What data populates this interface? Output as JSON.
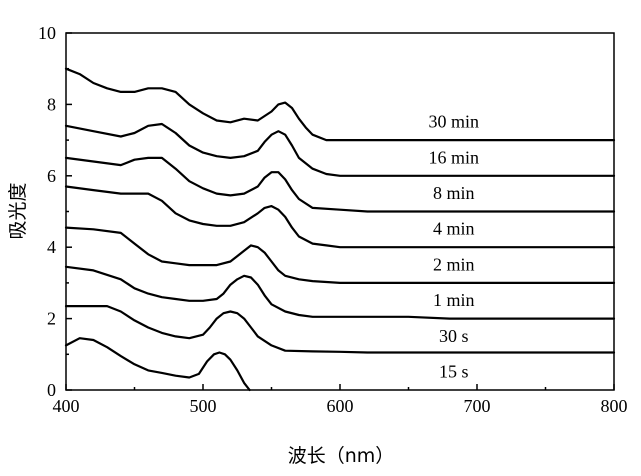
{
  "chart_data": {
    "type": "line",
    "xlabel": "波长（nm）",
    "ylabel": "吸光度",
    "xlim": [
      400,
      800
    ],
    "ylim": [
      0,
      10
    ],
    "x_ticks": [
      400,
      500,
      600,
      700,
      800
    ],
    "y_ticks": [
      0,
      2,
      4,
      6,
      8,
      10
    ],
    "grid": false,
    "series": [
      {
        "name": "15 s",
        "x": [
          400,
          410,
          420,
          430,
          440,
          450,
          460,
          470,
          480,
          490,
          497,
          503,
          508,
          512,
          516,
          520,
          525,
          530,
          534
        ],
        "y": [
          1.25,
          1.45,
          1.4,
          1.2,
          0.95,
          0.72,
          0.55,
          0.48,
          0.4,
          0.35,
          0.45,
          0.8,
          1.0,
          1.05,
          1.0,
          0.85,
          0.55,
          0.2,
          0.0
        ]
      },
      {
        "name": "30 s",
        "x": [
          400,
          430,
          440,
          450,
          460,
          470,
          480,
          490,
          500,
          505,
          510,
          515,
          520,
          525,
          530,
          535,
          540,
          550,
          560,
          580,
          600,
          620,
          680,
          800
        ],
        "y": [
          2.35,
          2.35,
          2.2,
          1.95,
          1.75,
          1.6,
          1.5,
          1.45,
          1.55,
          1.75,
          2.0,
          2.15,
          2.2,
          2.15,
          2.0,
          1.75,
          1.5,
          1.25,
          1.1,
          1.08,
          1.07,
          1.05,
          1.05,
          1.05
        ]
      },
      {
        "name": "1 min",
        "x": [
          400,
          420,
          440,
          450,
          460,
          470,
          480,
          490,
          500,
          510,
          515,
          520,
          525,
          530,
          535,
          540,
          545,
          550,
          560,
          570,
          580,
          600,
          650,
          680,
          800
        ],
        "y": [
          3.45,
          3.35,
          3.1,
          2.85,
          2.7,
          2.6,
          2.55,
          2.5,
          2.5,
          2.55,
          2.7,
          2.95,
          3.1,
          3.2,
          3.15,
          2.95,
          2.65,
          2.4,
          2.2,
          2.1,
          2.05,
          2.05,
          2.05,
          2.0,
          2.0
        ]
      },
      {
        "name": "2 min",
        "x": [
          400,
          420,
          440,
          450,
          460,
          470,
          480,
          490,
          500,
          510,
          520,
          525,
          530,
          535,
          540,
          545,
          550,
          555,
          560,
          570,
          580,
          600,
          620,
          800
        ],
        "y": [
          4.55,
          4.5,
          4.4,
          4.1,
          3.8,
          3.6,
          3.55,
          3.5,
          3.5,
          3.5,
          3.6,
          3.75,
          3.9,
          4.05,
          4.0,
          3.85,
          3.6,
          3.35,
          3.2,
          3.1,
          3.05,
          3.0,
          3.0,
          3.0
        ]
      },
      {
        "name": "4 min",
        "x": [
          400,
          420,
          440,
          450,
          460,
          470,
          480,
          490,
          500,
          510,
          520,
          530,
          540,
          545,
          550,
          555,
          560,
          565,
          570,
          580,
          590,
          600,
          700,
          800
        ],
        "y": [
          5.7,
          5.6,
          5.5,
          5.5,
          5.5,
          5.3,
          4.95,
          4.75,
          4.65,
          4.6,
          4.6,
          4.7,
          4.95,
          5.1,
          5.15,
          5.05,
          4.85,
          4.55,
          4.3,
          4.1,
          4.05,
          4.0,
          4.0,
          4.0
        ]
      },
      {
        "name": "8 min",
        "x": [
          400,
          420,
          440,
          450,
          460,
          470,
          480,
          490,
          500,
          510,
          520,
          530,
          540,
          545,
          550,
          555,
          560,
          565,
          570,
          580,
          600,
          620,
          800
        ],
        "y": [
          6.5,
          6.4,
          6.3,
          6.45,
          6.5,
          6.5,
          6.2,
          5.85,
          5.65,
          5.5,
          5.45,
          5.5,
          5.7,
          5.95,
          6.1,
          6.1,
          5.9,
          5.6,
          5.35,
          5.1,
          5.05,
          5.0,
          5.0
        ]
      },
      {
        "name": "16 min",
        "x": [
          400,
          420,
          440,
          450,
          460,
          470,
          480,
          490,
          500,
          510,
          520,
          530,
          540,
          545,
          550,
          555,
          560,
          565,
          570,
          580,
          590,
          600,
          800
        ],
        "y": [
          7.4,
          7.25,
          7.1,
          7.2,
          7.4,
          7.45,
          7.2,
          6.85,
          6.65,
          6.55,
          6.5,
          6.55,
          6.7,
          6.95,
          7.15,
          7.25,
          7.15,
          6.85,
          6.5,
          6.2,
          6.05,
          6.0,
          6.0
        ]
      },
      {
        "name": "30 min",
        "x": [
          400,
          410,
          420,
          430,
          440,
          450,
          460,
          470,
          480,
          490,
          500,
          510,
          520,
          530,
          540,
          550,
          555,
          560,
          565,
          570,
          575,
          580,
          590,
          600,
          800
        ],
        "y": [
          9.0,
          8.85,
          8.6,
          8.45,
          8.35,
          8.35,
          8.45,
          8.45,
          8.35,
          8.0,
          7.75,
          7.55,
          7.5,
          7.6,
          7.55,
          7.8,
          8.0,
          8.05,
          7.9,
          7.6,
          7.35,
          7.15,
          7.0,
          7.0,
          7.0
        ]
      }
    ],
    "series_labels": [
      "30 min",
      "16 min",
      "8 min",
      "4 min",
      "2 min",
      "1 min",
      "30 s",
      "15 s"
    ],
    "label_positions": [
      {
        "x": 683,
        "y": 7.35
      },
      {
        "x": 683,
        "y": 6.35
      },
      {
        "x": 683,
        "y": 5.35
      },
      {
        "x": 683,
        "y": 4.35
      },
      {
        "x": 683,
        "y": 3.35
      },
      {
        "x": 683,
        "y": 2.35
      },
      {
        "x": 683,
        "y": 1.35
      },
      {
        "x": 683,
        "y": 0.35
      }
    ]
  }
}
